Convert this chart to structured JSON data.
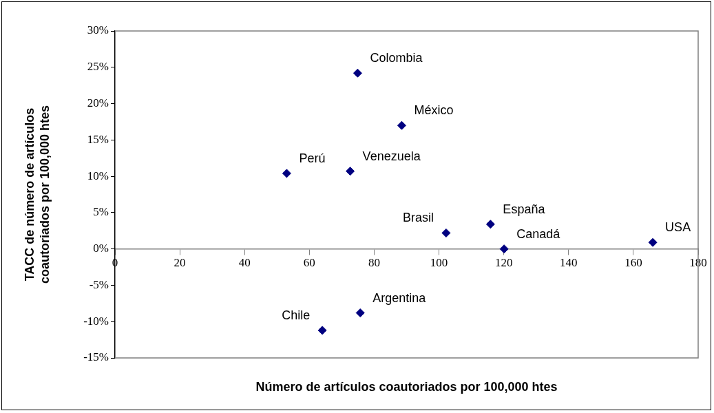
{
  "chart_data": {
    "type": "scatter",
    "xlabel": "Número de artículos coautoriados por 100,000 htes",
    "ylabel": "TACC de número de artículos\ncoautoriados por 100,000 htes",
    "series": [
      {
        "color": "#000080",
        "x": [
          74.9,
          88.5,
          53.0,
          72.6,
          102.2,
          115.9,
          120.1,
          166,
          64.0,
          75.7
        ],
        "values": [
          24.2,
          17.0,
          10.4,
          10.7,
          2.2,
          3.4,
          0,
          0.9,
          -11.2,
          -8.8
        ]
      }
    ],
    "annotations": [
      {
        "text": "Colombia",
        "x": 74.9,
        "y": 24.2
      },
      {
        "text": "México",
        "x": 88.5,
        "y": 17.0
      },
      {
        "text": "Perú",
        "x": 53.0,
        "y": 10.4
      },
      {
        "text": "Venezuela",
        "x": 72.6,
        "y": 10.7
      },
      {
        "text": "Brasil",
        "x": 102.2,
        "y": 2.2
      },
      {
        "text": "España",
        "x": 115.9,
        "y": 3.4
      },
      {
        "text": "Canadá",
        "x": 120.1,
        "y": 0
      },
      {
        "text": "USA",
        "x": 166,
        "y": 0.9
      },
      {
        "text": "Chile",
        "x": 64.0,
        "y": -11.2
      },
      {
        "text": "Argentina",
        "x": 75.7,
        "y": -8.8
      }
    ],
    "xlim": [
      0,
      180
    ],
    "xticks": [
      0,
      20,
      40,
      60,
      80,
      100,
      120,
      140,
      160,
      180
    ],
    "ylim": [
      -15,
      30
    ],
    "yticks": [
      {
        "value": -15,
        "label": "-15%"
      },
      {
        "value": -10,
        "label": "-10%"
      },
      {
        "value": -5,
        "label": "-5%"
      },
      {
        "value": 0,
        "label": "0%"
      },
      {
        "value": 5,
        "label": "5%"
      },
      {
        "value": 10,
        "label": "10%"
      },
      {
        "value": 15,
        "label": "15%"
      },
      {
        "value": 20,
        "label": "20%"
      },
      {
        "value": 25,
        "label": "25%"
      },
      {
        "value": 30,
        "label": "30%"
      }
    ],
    "grid": false,
    "legend": false,
    "marker": "diamond"
  }
}
